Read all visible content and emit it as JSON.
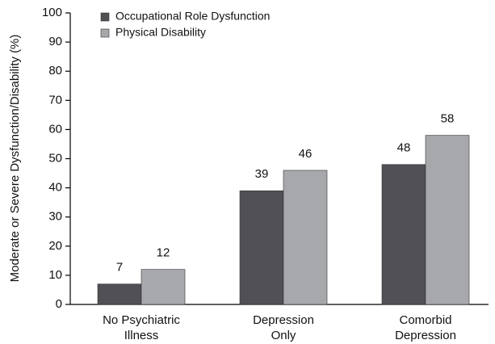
{
  "chart_data": {
    "type": "bar",
    "y_label": "Moderate or Severe Dysfunction/Disability (%)",
    "categories": [
      "No Psychiatric\nIllness",
      "Depression\nOnly",
      "Comorbid\nDepression"
    ],
    "series": [
      {
        "name": "Occupational Role Dysfunction",
        "color": "#505055",
        "values": [
          7,
          39,
          48
        ]
      },
      {
        "name": "Physical Disability",
        "color": "#a7a8ac",
        "values": [
          12,
          46,
          58
        ]
      }
    ],
    "ylim": [
      0,
      100
    ],
    "yticks": [
      0,
      10,
      20,
      30,
      40,
      50,
      60,
      70,
      80,
      90,
      100
    ],
    "grid": false,
    "legend": "upper left"
  }
}
